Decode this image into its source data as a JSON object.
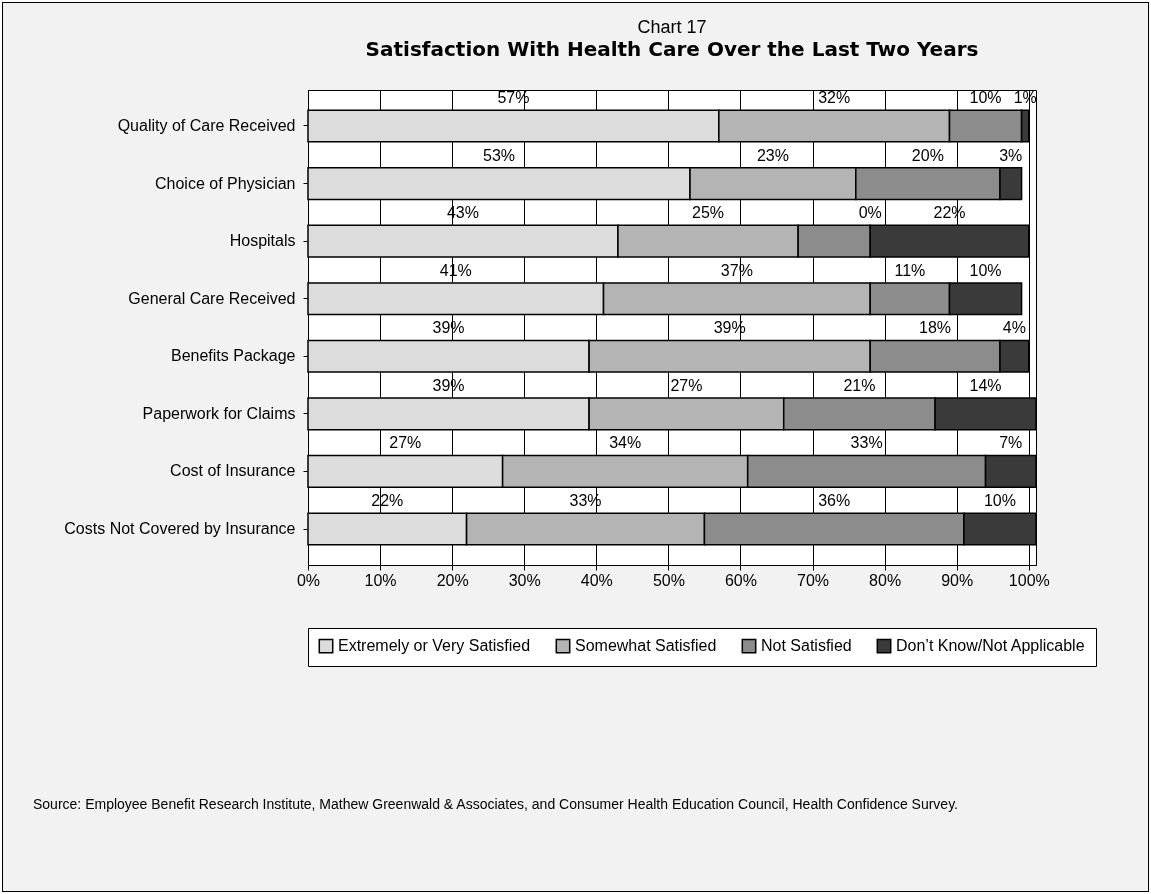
{
  "chart_data": {
    "type": "bar",
    "orientation": "horizontal",
    "stacked": true,
    "title": "Chart 17",
    "subtitle": "Satisfaction With Health Care Over the Last Two Years",
    "categories": [
      "Quality of Care Received",
      "Choice of Physician",
      "Hospitals",
      "General Care Received",
      "Benefits Package",
      "Paperwork for Claims",
      "Cost of Insurance",
      "Costs Not Covered by Insurance"
    ],
    "series": [
      {
        "name": "Extremely or Very Satisfied",
        "color": "#dcdcdc",
        "values": [
          57,
          53,
          43,
          41,
          39,
          39,
          27,
          22
        ],
        "value_labels": [
          "57%",
          "53%",
          "43%",
          "41%",
          "39%",
          "39%",
          "27%",
          "22%"
        ]
      },
      {
        "name": "Somewhat Satisfied",
        "color": "#b4b4b4",
        "values": [
          32,
          23,
          25,
          37,
          39,
          27,
          34,
          33
        ],
        "value_labels": [
          "32%",
          "23%",
          "25%",
          "37%",
          "39%",
          "27%",
          "34%",
          "33%"
        ]
      },
      {
        "name": "Not Satisfied",
        "color": "#8c8c8c",
        "values": [
          10,
          20,
          10,
          11,
          18,
          21,
          33,
          36
        ],
        "value_labels": [
          "10%",
          "20%",
          null,
          "11%",
          "18%",
          "21%",
          "33%",
          "36%"
        ]
      },
      {
        "name": "Don’t Know/Not Applicable",
        "color": "#3a3a3a",
        "values": [
          1,
          3,
          22,
          10,
          4,
          14,
          7,
          10
        ],
        "value_labels": [
          "1%",
          "3%",
          "22%",
          "10%",
          "4%",
          "14%",
          "7%",
          "10%"
        ]
      }
    ],
    "xlim": [
      0,
      101
    ],
    "xticks": [
      {
        "value": 0,
        "label": "0%"
      },
      {
        "value": 10,
        "label": "10%"
      },
      {
        "value": 20,
        "label": "20%"
      },
      {
        "value": 30,
        "label": "30%"
      },
      {
        "value": 40,
        "label": "40%"
      },
      {
        "value": 50,
        "label": "50%"
      },
      {
        "value": 60,
        "label": "60%"
      },
      {
        "value": 70,
        "label": "70%"
      },
      {
        "value": 80,
        "label": "80%"
      },
      {
        "value": 90,
        "label": "90%"
      },
      {
        "value": 100,
        "label": "100%"
      }
    ],
    "grid": "x",
    "legend": "bottom",
    "annotations": [
      {
        "text": "0%",
        "x": 78,
        "y": "Hospitals"
      },
      "Source: Employee Benefit Research Institute, Mathew Greenwald & Associates, and Consumer Health Education Council, Health Confidence Survey."
    ]
  }
}
